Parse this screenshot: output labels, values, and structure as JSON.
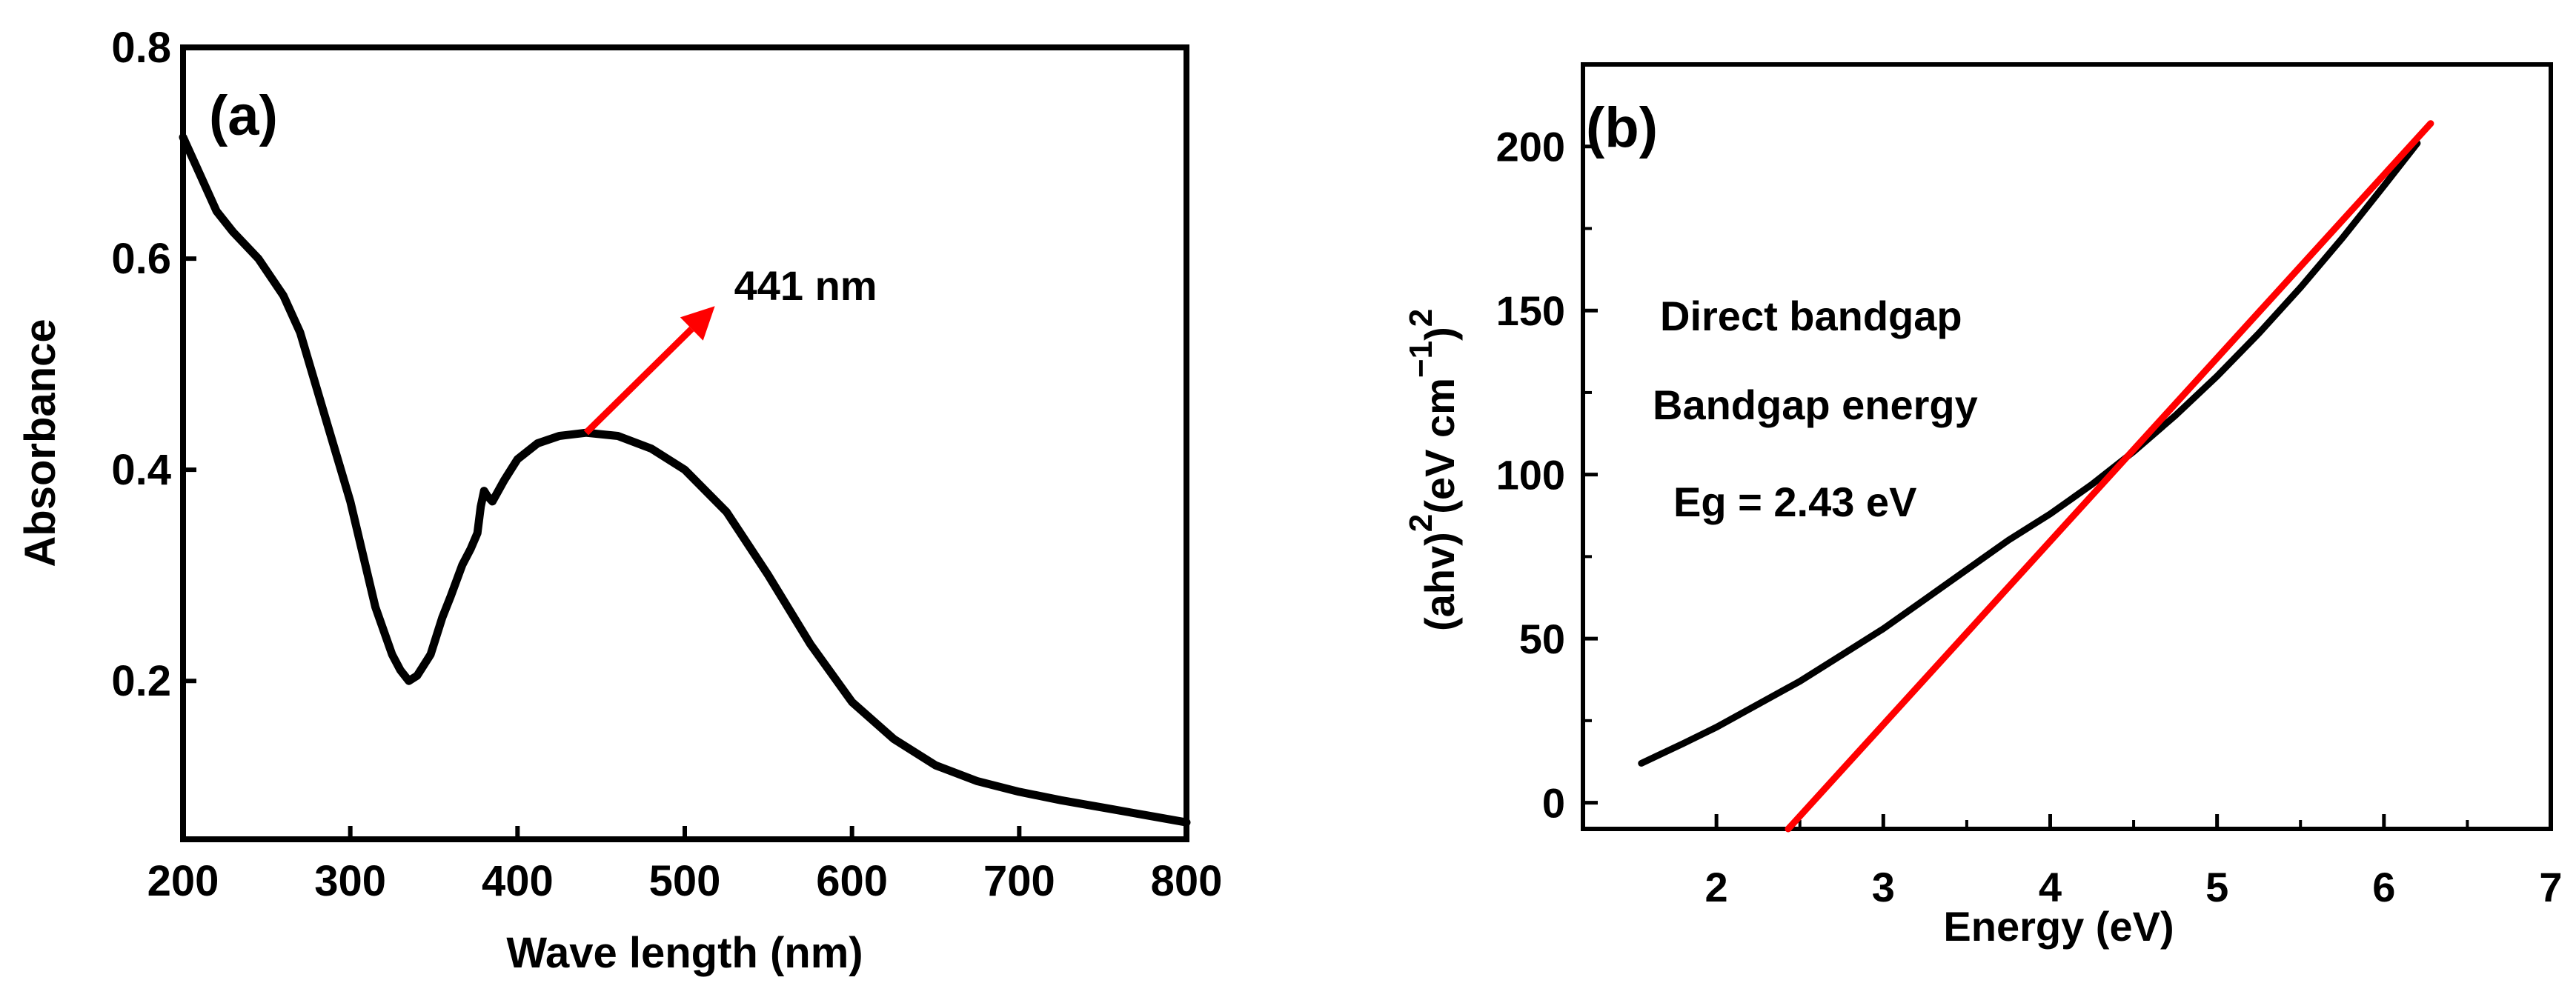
{
  "chart_data": [
    {
      "panel_label": "(a)",
      "type": "line",
      "xlabel": "Wave length (nm)",
      "ylabel": "Absorbance",
      "xlim": [
        200,
        800
      ],
      "ylim": [
        0.05,
        0.8
      ],
      "x_ticks": [
        "200",
        "300",
        "400",
        "500",
        "600",
        "700",
        "800"
      ],
      "y_ticks": [
        "0.2",
        "0.4",
        "0.6",
        "0.8"
      ],
      "grid": false,
      "series": [
        {
          "color": "#000000",
          "x": [
            200,
            210,
            220,
            230,
            245,
            260,
            270,
            285,
            300,
            315,
            325,
            330,
            335,
            340,
            348,
            355,
            360,
            367,
            372,
            376,
            378,
            380,
            382,
            385,
            392,
            400,
            412,
            425,
            441,
            460,
            480,
            500,
            525,
            550,
            575,
            600,
            625,
            650,
            675,
            700,
            725,
            750,
            775,
            800
          ],
          "y": [
            0.715,
            0.68,
            0.645,
            0.625,
            0.6,
            0.565,
            0.53,
            0.45,
            0.37,
            0.27,
            0.225,
            0.21,
            0.2,
            0.205,
            0.225,
            0.26,
            0.28,
            0.31,
            0.325,
            0.34,
            0.365,
            0.38,
            0.375,
            0.37,
            0.39,
            0.41,
            0.425,
            0.432,
            0.435,
            0.432,
            0.42,
            0.4,
            0.36,
            0.3,
            0.235,
            0.18,
            0.145,
            0.12,
            0.105,
            0.095,
            0.087,
            0.08,
            0.073,
            0.066
          ]
        }
      ],
      "annotations": [
        {
          "text": "441 nm",
          "arrow_from": [
            441,
            0.435
          ],
          "arrow_to": [
            518,
            0.555
          ],
          "color": "#ff0000"
        }
      ]
    },
    {
      "panel_label": "(b)",
      "type": "line",
      "xlabel": "Energy (eV)",
      "ylabel": "(ahv)²(eV cm⁻¹)²",
      "xlim": [
        1.2,
        7
      ],
      "ylim": [
        -8,
        225
      ],
      "x_ticks": [
        "2",
        "3",
        "4",
        "5",
        "6",
        "7"
      ],
      "y_ticks": [
        "0",
        "50",
        "100",
        "150",
        "200"
      ],
      "grid": false,
      "series": [
        {
          "color": "#000000",
          "x": [
            1.55,
            1.8,
            2.0,
            2.25,
            2.5,
            2.75,
            3.0,
            3.25,
            3.5,
            3.75,
            4.0,
            4.25,
            4.5,
            4.75,
            5.0,
            5.25,
            5.5,
            5.75,
            6.0,
            6.2
          ],
          "y": [
            12,
            18,
            23,
            30,
            37,
            45,
            53,
            62,
            71,
            80,
            88,
            97,
            107,
            118,
            130,
            143,
            157,
            172,
            188,
            201
          ]
        },
        {
          "color": "#ff0000",
          "x": [
            2.43,
            6.28
          ],
          "y": [
            -8,
            207
          ]
        }
      ],
      "annotations": [
        {
          "text": "Direct bandgap"
        },
        {
          "text": "Bandgap energy"
        },
        {
          "text": "Eg = 2.43 eV"
        }
      ]
    }
  ]
}
